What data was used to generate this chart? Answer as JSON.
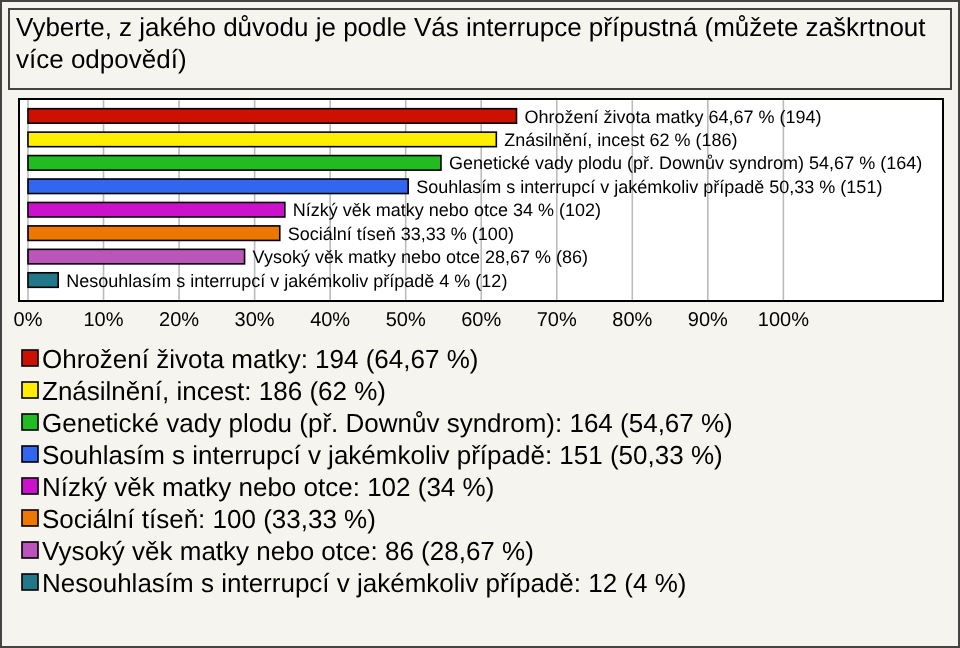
{
  "chart_data": {
    "type": "bar",
    "orientation": "horizontal",
    "title": "Vyberte, z jakého důvodu je podle Vás interrupce přípustná (můžete zaškrtnout více odpovědí)",
    "categories": [
      "Ohrožení života matky",
      "Znásilnění, incest",
      "Genetické vady plodu (př. Downův syndrom)",
      "Souhlasím s interrupcí v jakémkoliv případě",
      "Nízký věk matky nebo otce",
      "Sociální tíseň",
      "Vysoký věk matky nebo otce",
      "Nesouhlasím s interrupcí v jakémkoliv případě"
    ],
    "series": [
      {
        "name": "Ohrožení života matky: 194 (64,67 %)",
        "color": "#cc1100",
        "values": [
          64.67,
          null,
          null,
          null,
          null,
          null,
          null,
          null
        ],
        "value_labels": [
          "64,67 % (194)",
          null,
          null,
          null,
          null,
          null,
          null,
          null
        ]
      },
      {
        "name": "Znásilnění, incest: 186 (62 %)",
        "color": "#ffee00",
        "values": [
          null,
          62,
          null,
          null,
          null,
          null,
          null,
          null
        ],
        "value_labels": [
          null,
          "62 % (186)",
          null,
          null,
          null,
          null,
          null,
          null
        ]
      },
      {
        "name": "Genetické vady plodu (př. Downův syndrom): 164 (54,67 %)",
        "color": "#22bb22",
        "values": [
          null,
          null,
          54.67,
          null,
          null,
          null,
          null,
          null
        ],
        "value_labels": [
          null,
          null,
          "54,67 % (164)",
          null,
          null,
          null,
          null,
          null
        ]
      },
      {
        "name": "Souhlasím s interrupcí v jakémkoliv případě: 151 (50,33 %)",
        "color": "#3366ee",
        "values": [
          null,
          null,
          null,
          50.33,
          null,
          null,
          null,
          null
        ],
        "value_labels": [
          null,
          null,
          null,
          "50,33 % (151)",
          null,
          null,
          null,
          null
        ]
      },
      {
        "name": "Nízký věk matky nebo otce: 102 (34 %)",
        "color": "#cc11cc",
        "values": [
          null,
          null,
          null,
          null,
          34,
          null,
          null,
          null
        ],
        "value_labels": [
          null,
          null,
          null,
          null,
          "34 % (102)",
          null,
          null,
          null
        ]
      },
      {
        "name": "Sociální tíseň: 100 (33,33 %)",
        "color": "#ee7700",
        "values": [
          null,
          null,
          null,
          null,
          null,
          33.33,
          null,
          null
        ],
        "value_labels": [
          null,
          null,
          null,
          null,
          null,
          "33,33 % (100)",
          null,
          null
        ]
      },
      {
        "name": "Vysoký věk matky nebo otce: 86 (28,67 %)",
        "color": "#bb55bb",
        "values": [
          null,
          null,
          null,
          null,
          null,
          null,
          28.67,
          null
        ],
        "value_labels": [
          null,
          null,
          null,
          null,
          null,
          null,
          "28,67 % (86)",
          null
        ]
      },
      {
        "name": "Nesouhlasím s interrupcí v jakémkoliv případě: 12 (4 %)",
        "color": "#227788",
        "values": [
          null,
          null,
          null,
          null,
          null,
          null,
          null,
          4
        ],
        "value_labels": [
          null,
          null,
          null,
          null,
          null,
          null,
          null,
          "4 % (12)"
        ]
      }
    ],
    "xlim": [
      0,
      121
    ],
    "xticks": [
      {
        "value": 0,
        "label": "0%"
      },
      {
        "value": 10,
        "label": "10%"
      },
      {
        "value": 20,
        "label": "20%"
      },
      {
        "value": 30,
        "label": "30%"
      },
      {
        "value": 40,
        "label": "40%"
      },
      {
        "value": 50,
        "label": "50%"
      },
      {
        "value": 60,
        "label": "60%"
      },
      {
        "value": 70,
        "label": "70%"
      },
      {
        "value": 80,
        "label": "80%"
      },
      {
        "value": 90,
        "label": "90%"
      },
      {
        "value": 100,
        "label": "100%"
      }
    ],
    "grid": "x",
    "legend": "bottom"
  }
}
